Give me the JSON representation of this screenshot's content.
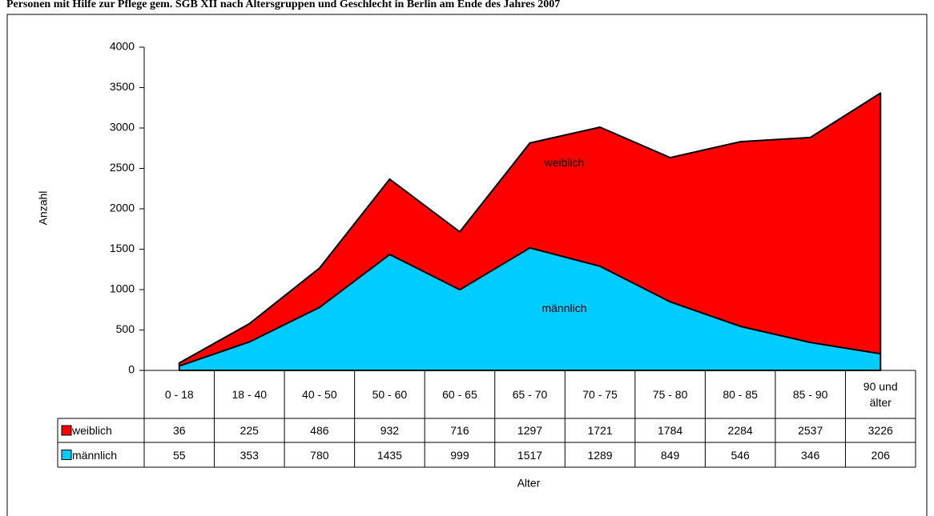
{
  "chart_data": {
    "type": "area",
    "title": "Personen mit Hilfe zur Pflege gem. SGB XII nach Altersgruppen und Geschlecht in Berlin am Ende des Jahres 2007",
    "y_label": "Anzahl",
    "x_label": "Alter",
    "stacked": true,
    "categories": [
      "0 - 18",
      "18 - 40",
      "40 - 50",
      "50 - 60",
      "60 - 65",
      "65 - 70",
      "70 - 75",
      "75 - 80",
      "80 - 85",
      "85 - 90",
      "90 und älter"
    ],
    "series": [
      {
        "name": "weiblich",
        "color": "#ff0000",
        "values": [
          36,
          225,
          486,
          932,
          716,
          1297,
          1721,
          1784,
          2284,
          2537,
          3226
        ]
      },
      {
        "name": "männlich",
        "color": "#00ccff",
        "values": [
          55,
          353,
          780,
          1435,
          999,
          1517,
          1289,
          849,
          546,
          346,
          206
        ]
      }
    ],
    "ylim": [
      0,
      4000
    ],
    "yticks": [
      0,
      500,
      1000,
      1500,
      2000,
      2500,
      3000,
      3500,
      4000
    ]
  }
}
